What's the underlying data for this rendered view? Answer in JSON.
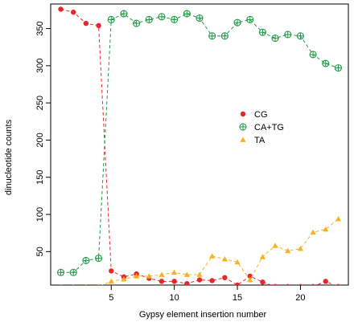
{
  "chart_data": {
    "type": "line",
    "title": "",
    "xlabel": "Gypsy element insertion number",
    "ylabel": "dinucleotide counts",
    "xlim": [
      0.2,
      23.8
    ],
    "ylim": [
      5,
      383
    ],
    "xticks": [
      5,
      10,
      15,
      20
    ],
    "yticks": [
      50,
      100,
      150,
      200,
      250,
      300,
      350
    ],
    "legend_position": "center-right",
    "grid": false,
    "series": [
      {
        "name": "CG",
        "color": "#e8262b",
        "marker": "circle",
        "points": [
          [
            1,
            376
          ],
          [
            2,
            372
          ],
          [
            3,
            357
          ],
          [
            4,
            354
          ],
          [
            5,
            24
          ],
          [
            6,
            16
          ],
          [
            7,
            20
          ],
          [
            8,
            14
          ],
          [
            9,
            10
          ],
          [
            10,
            10
          ],
          [
            11,
            7
          ],
          [
            12,
            12
          ],
          [
            13,
            11
          ],
          [
            14,
            15
          ],
          [
            15,
            5
          ],
          [
            16,
            17
          ],
          [
            17,
            9
          ],
          [
            18,
            3
          ],
          [
            19,
            3
          ],
          [
            20,
            3
          ],
          [
            21,
            3
          ],
          [
            22,
            10
          ],
          [
            23,
            3
          ]
        ]
      },
      {
        "name": "CA+TG",
        "color": "#1f9a46",
        "marker": "circle-plus",
        "points": [
          [
            1,
            22
          ],
          [
            2,
            22
          ],
          [
            3,
            38
          ],
          [
            4,
            41
          ],
          [
            5,
            362
          ],
          [
            6,
            370
          ],
          [
            7,
            357
          ],
          [
            8,
            362
          ],
          [
            9,
            366
          ],
          [
            10,
            362
          ],
          [
            11,
            370
          ],
          [
            12,
            364
          ],
          [
            13,
            340
          ],
          [
            14,
            340
          ],
          [
            15,
            358
          ],
          [
            16,
            362
          ],
          [
            17,
            345
          ],
          [
            18,
            337
          ],
          [
            19,
            342
          ],
          [
            20,
            340
          ],
          [
            21,
            315
          ],
          [
            22,
            303
          ],
          [
            23,
            297
          ]
        ]
      },
      {
        "name": "TA",
        "color": "#f7b21e",
        "marker": "triangle",
        "points": [
          [
            1,
            3
          ],
          [
            2,
            3
          ],
          [
            3,
            3
          ],
          [
            4,
            3
          ],
          [
            5,
            10
          ],
          [
            6,
            13
          ],
          [
            7,
            17
          ],
          [
            8,
            17
          ],
          [
            9,
            19
          ],
          [
            10,
            22
          ],
          [
            11,
            19
          ],
          [
            12,
            19
          ],
          [
            13,
            44
          ],
          [
            14,
            40
          ],
          [
            15,
            36
          ],
          [
            16,
            12
          ],
          [
            17,
            43
          ],
          [
            18,
            58
          ],
          [
            19,
            51
          ],
          [
            20,
            54
          ],
          [
            21,
            76
          ],
          [
            22,
            80
          ],
          [
            23,
            94
          ]
        ]
      }
    ]
  }
}
